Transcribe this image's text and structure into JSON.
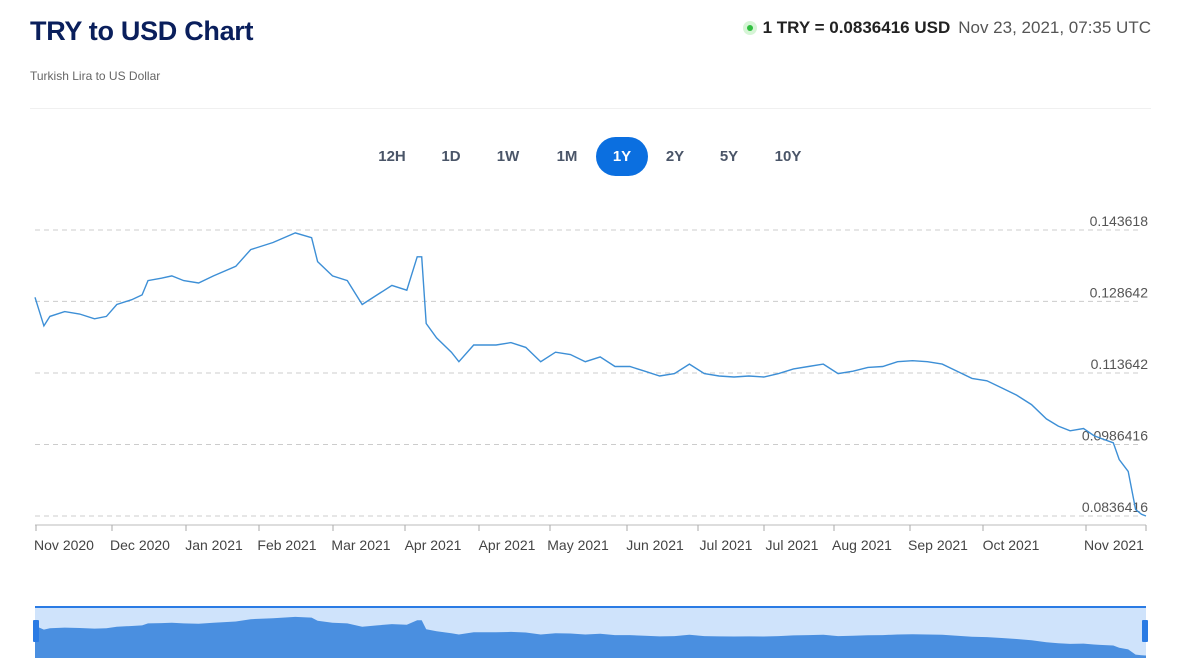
{
  "header": {
    "title": "TRY to USD Chart",
    "subtitle": "Turkish Lira to US Dollar",
    "rate_label": "1 TRY = 0.0836416 USD",
    "rate_time": "Nov 23, 2021, 07:35 UTC"
  },
  "tabs": [
    "12H",
    "1D",
    "1W",
    "1M",
    "1Y",
    "2Y",
    "5Y",
    "10Y"
  ],
  "active_tab": "1Y",
  "colors": {
    "accent": "#0b6fe0",
    "line": "#3d8fd6",
    "navigator_fill": "#4a8fe0",
    "navigator_bg": "#cfe3fb",
    "live": "#2fbf3f"
  },
  "chart_data": {
    "type": "line",
    "title": "",
    "xlabel": "",
    "ylabel": "",
    "y_ticks": [
      "0.143618",
      "0.128642",
      "0.113642",
      "0.0986416",
      "0.0836416"
    ],
    "x_ticks": [
      "Nov 2020",
      "Dec 2020",
      "Jan 2021",
      "Feb 2021",
      "Mar 2021",
      "Apr 2021",
      "Apr 2021",
      "May 2021",
      "Jun 2021",
      "Jul 2021",
      "Jul 2021",
      "Aug 2021",
      "Sep 2021",
      "Oct 2021",
      "Nov 2021"
    ],
    "ylim": [
      0.0836416,
      0.143618
    ],
    "grid": "horizontal dashed",
    "legend": "none",
    "series": [
      {
        "values": [
          [
            0.0,
            0.1295
          ],
          [
            0.6,
            0.1235
          ],
          [
            1.0,
            0.1255
          ],
          [
            2.0,
            0.1265
          ],
          [
            3.0,
            0.126
          ],
          [
            4.0,
            0.125
          ],
          [
            4.8,
            0.1255
          ],
          [
            5.5,
            0.128
          ],
          [
            6.5,
            0.129
          ],
          [
            7.2,
            0.13
          ],
          [
            7.6,
            0.133
          ],
          [
            8.5,
            0.1335
          ],
          [
            9.2,
            0.134
          ],
          [
            10.0,
            0.133
          ],
          [
            11.0,
            0.1325
          ],
          [
            12.0,
            0.134
          ],
          [
            13.5,
            0.136
          ],
          [
            14.5,
            0.1395
          ],
          [
            16.0,
            0.141
          ],
          [
            17.5,
            0.143
          ],
          [
            18.6,
            0.142
          ],
          [
            19.0,
            0.137
          ],
          [
            20.0,
            0.134
          ],
          [
            21.0,
            0.133
          ],
          [
            22.0,
            0.128
          ],
          [
            23.0,
            0.13
          ],
          [
            24.0,
            0.132
          ],
          [
            25.0,
            0.131
          ],
          [
            25.7,
            0.138
          ],
          [
            26.0,
            0.138
          ],
          [
            26.3,
            0.124
          ],
          [
            27.0,
            0.121
          ],
          [
            28.0,
            0.118
          ],
          [
            28.5,
            0.116
          ],
          [
            29.5,
            0.1195
          ],
          [
            31.0,
            0.1195
          ],
          [
            32.0,
            0.12
          ],
          [
            33.0,
            0.119
          ],
          [
            34.0,
            0.116
          ],
          [
            35.0,
            0.118
          ],
          [
            36.0,
            0.1175
          ],
          [
            37.0,
            0.116
          ],
          [
            38.0,
            0.117
          ],
          [
            39.0,
            0.115
          ],
          [
            40.0,
            0.115
          ],
          [
            41.0,
            0.114
          ],
          [
            42.0,
            0.113
          ],
          [
            43.0,
            0.1135
          ],
          [
            44.0,
            0.1155
          ],
          [
            45.0,
            0.1135
          ],
          [
            46.0,
            0.113
          ],
          [
            47.0,
            0.1128
          ],
          [
            48.0,
            0.113
          ],
          [
            49.0,
            0.1128
          ],
          [
            50.0,
            0.1135
          ],
          [
            51.0,
            0.1145
          ],
          [
            52.0,
            0.115
          ],
          [
            53.0,
            0.1155
          ],
          [
            54.0,
            0.1135
          ],
          [
            55.0,
            0.114
          ],
          [
            56.0,
            0.1148
          ],
          [
            57.0,
            0.115
          ],
          [
            58.0,
            0.116
          ],
          [
            59.0,
            0.1162
          ],
          [
            60.0,
            0.116
          ],
          [
            61.0,
            0.1155
          ],
          [
            62.0,
            0.114
          ],
          [
            63.0,
            0.1125
          ],
          [
            64.0,
            0.112
          ],
          [
            65.0,
            0.1105
          ],
          [
            66.0,
            0.109
          ],
          [
            67.0,
            0.107
          ],
          [
            68.0,
            0.104
          ],
          [
            68.8,
            0.1025
          ],
          [
            69.6,
            0.1015
          ],
          [
            70.5,
            0.102
          ],
          [
            71.2,
            0.1005
          ],
          [
            71.6,
            0.1
          ],
          [
            72.5,
            0.099
          ],
          [
            72.9,
            0.0955
          ],
          [
            73.5,
            0.093
          ],
          [
            74.0,
            0.085
          ],
          [
            74.4,
            0.084
          ],
          [
            74.7,
            0.0836416
          ]
        ]
      }
    ]
  }
}
